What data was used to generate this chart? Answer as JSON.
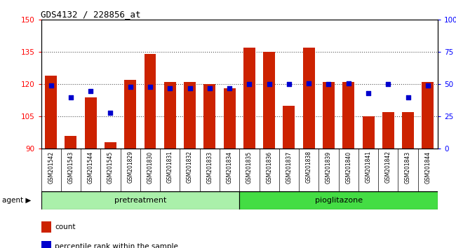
{
  "title": "GDS4132 / 228856_at",
  "samples": [
    "GSM201542",
    "GSM201543",
    "GSM201544",
    "GSM201545",
    "GSM201829",
    "GSM201830",
    "GSM201831",
    "GSM201832",
    "GSM201833",
    "GSM201834",
    "GSM201835",
    "GSM201836",
    "GSM201837",
    "GSM201838",
    "GSM201839",
    "GSM201840",
    "GSM201841",
    "GSM201842",
    "GSM201843",
    "GSM201844"
  ],
  "counts": [
    124,
    96,
    114,
    93,
    122,
    134,
    121,
    121,
    120,
    118,
    137,
    135,
    110,
    137,
    121,
    121,
    105,
    107,
    107,
    121
  ],
  "percentiles": [
    49,
    40,
    45,
    28,
    48,
    48,
    47,
    47,
    47,
    47,
    50,
    50,
    50,
    51,
    50,
    51,
    43,
    50,
    40,
    49
  ],
  "pretreatment_count": 10,
  "pioglitazone_count": 10,
  "pretreatment_color": "#aaf0aa",
  "pioglitazone_color": "#44dd44",
  "ylim_left": [
    90,
    150
  ],
  "ylim_right": [
    0,
    100
  ],
  "yticks_left": [
    90,
    105,
    120,
    135,
    150
  ],
  "yticks_right": [
    0,
    25,
    50,
    75,
    100
  ],
  "bar_color": "#cc2200",
  "dot_color": "#0000cc",
  "bar_bottom": 90,
  "grid_color": "#555555",
  "bg_color": "#ffffff",
  "tick_bg_color": "#c8c8c8",
  "legend_count_label": "count",
  "legend_pct_label": "percentile rank within the sample",
  "agent_label": "agent"
}
